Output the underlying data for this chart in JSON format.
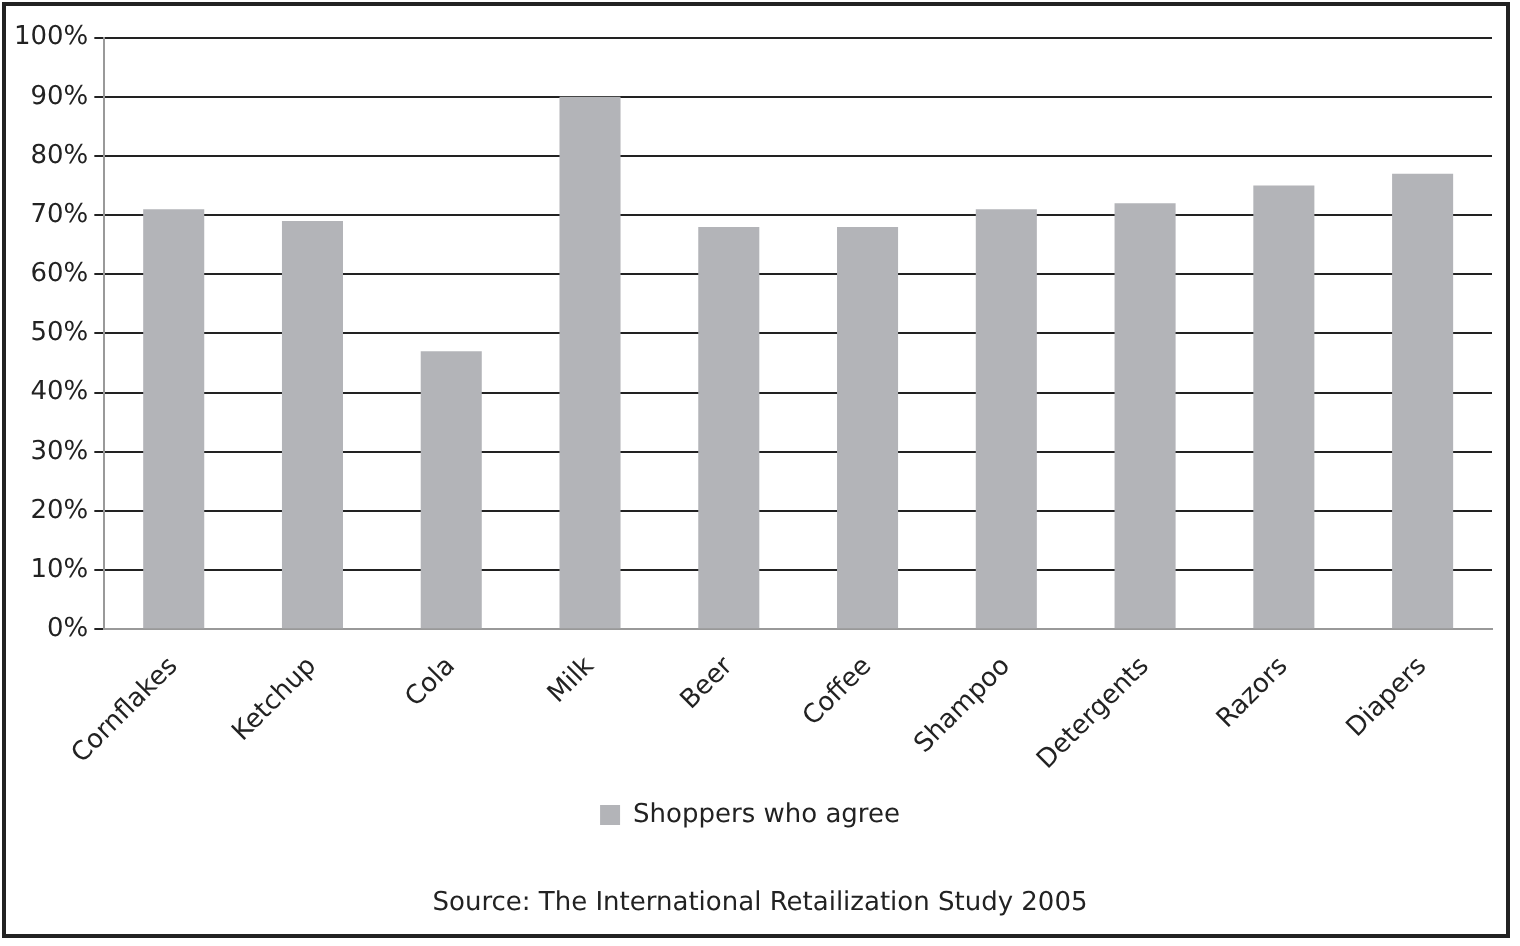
{
  "chart_data": {
    "type": "bar",
    "categories": [
      "Cornflakes",
      "Ketchup",
      "Cola",
      "Milk",
      "Beer",
      "Coffee",
      "Shampoo",
      "Detergents",
      "Razors",
      "Diapers"
    ],
    "series": [
      {
        "name": "Shoppers who agree",
        "color": "#b3b4b8",
        "values": [
          71,
          69,
          47,
          90,
          68,
          68,
          71,
          72,
          75,
          77
        ]
      }
    ],
    "ylim": [
      0,
      100
    ],
    "yticks": [
      {
        "value": 0,
        "label": "0%"
      },
      {
        "value": 10,
        "label": "10%"
      },
      {
        "value": 20,
        "label": "20%"
      },
      {
        "value": 30,
        "label": "30%"
      },
      {
        "value": 40,
        "label": "40%"
      },
      {
        "value": 50,
        "label": "50%"
      },
      {
        "value": 60,
        "label": "60%"
      },
      {
        "value": 70,
        "label": "70%"
      },
      {
        "value": 80,
        "label": "80%"
      },
      {
        "value": 90,
        "label": "90%"
      },
      {
        "value": 100,
        "label": "100%"
      }
    ],
    "grid": "y",
    "legend": "bottom",
    "annotations": [
      "Source: The International Retailization Study 2005"
    ]
  }
}
